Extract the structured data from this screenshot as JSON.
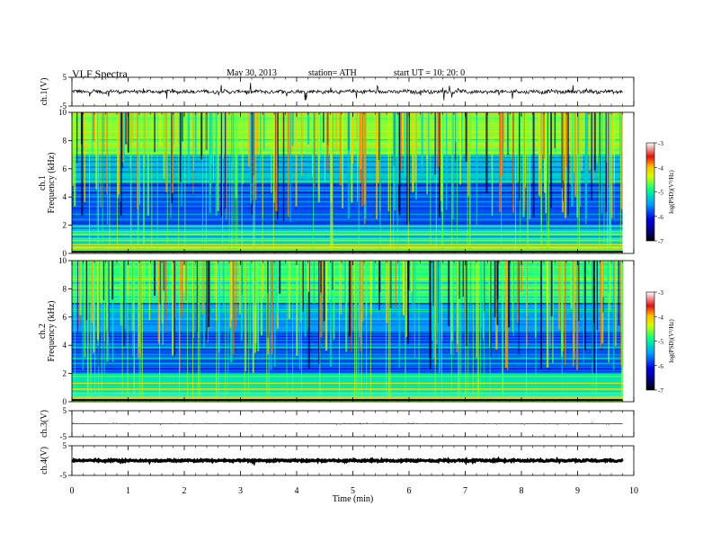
{
  "header": {
    "title": "VLF Spectra",
    "date": "May 30, 2013",
    "station": "station= ATH",
    "start_time": "start UT = 10: 20: 0"
  },
  "chart_data": [
    {
      "id": "ch1_waveform",
      "type": "line",
      "ylabel": "ch.1(V)",
      "ylim": [
        -5,
        5
      ],
      "y_ticks": [
        "5",
        "-5"
      ],
      "xlim": [
        0,
        10
      ],
      "description_of_trace": "noisy signal around ~0 V with spikes",
      "data_end_min": 9.8,
      "baseline": 0,
      "amplitude": 0.6,
      "spike_amplitude": 3.0
    },
    {
      "id": "ch1_spectrogram",
      "type": "heatmap",
      "ylabel": "ch.1 Frequency (kHz)",
      "ylim": [
        0,
        10
      ],
      "y_ticks": [
        "0",
        "2",
        "4",
        "6",
        "8",
        "10"
      ],
      "xlim": [
        0,
        10
      ],
      "data_end_min": 9.8,
      "colorbar": {
        "label": "log(PSD)(V²/Hz)",
        "range": [
          -7,
          -3
        ],
        "ticks": [
          "-3",
          "-4",
          "-5",
          "-6",
          "-7"
        ],
        "colors": [
          "#000000",
          "#0000cc",
          "#0099ff",
          "#00ff88",
          "#ffff00",
          "#ff6600",
          "#cc0000",
          "#ffffff"
        ]
      },
      "levels": [
        {
          "f_range": [
            0,
            0.5
          ],
          "log_psd": -4.5
        },
        {
          "f_range": [
            0.5,
            2
          ],
          "log_psd": -5.2
        },
        {
          "f_range": [
            2,
            5
          ],
          "log_psd": -5.8
        },
        {
          "f_range": [
            5,
            7
          ],
          "log_psd": -5.3
        },
        {
          "f_range": [
            7,
            10
          ],
          "log_psd": -4.6
        }
      ]
    },
    {
      "id": "ch2_spectrogram",
      "type": "heatmap",
      "ylabel": "ch.2 Frequency (kHz)",
      "ylim": [
        0,
        10
      ],
      "y_ticks": [
        "0",
        "2",
        "4",
        "6",
        "8",
        "10"
      ],
      "xlim": [
        0,
        10
      ],
      "data_end_min": 9.8,
      "colorbar": {
        "label": "log(PSD)(V²/Hz)",
        "range": [
          -7,
          -3
        ],
        "ticks": [
          "-3",
          "-4",
          "-5",
          "-6",
          "-7"
        ]
      },
      "levels": [
        {
          "f_range": [
            0,
            0.5
          ],
          "log_psd": -4.5
        },
        {
          "f_range": [
            0.5,
            2
          ],
          "log_psd": -5.1
        },
        {
          "f_range": [
            2,
            5
          ],
          "log_psd": -5.7
        },
        {
          "f_range": [
            5,
            7
          ],
          "log_psd": -5.5
        },
        {
          "f_range": [
            7,
            10
          ],
          "log_psd": -4.8
        }
      ]
    },
    {
      "id": "ch3_waveform",
      "type": "line",
      "ylabel": "ch.3(V)",
      "ylim": [
        -5,
        5
      ],
      "y_ticks": [
        "5",
        "-5"
      ],
      "xlim": [
        0,
        10
      ],
      "data_end_min": 9.8,
      "baseline": 0,
      "amplitude": 0.05,
      "spike_amplitude": 0.3
    },
    {
      "id": "ch4_waveform",
      "type": "line",
      "ylabel": "ch.4(V)",
      "ylim": [
        -5,
        5
      ],
      "y_ticks": [
        "5",
        "-5"
      ],
      "xlim": [
        0,
        10
      ],
      "data_end_min": 9.8,
      "baseline": 0,
      "amplitude": 0.25,
      "spike_amplitude": 0.3
    }
  ],
  "xaxis": {
    "label": "Time (min)",
    "ticks": [
      "0",
      "1",
      "2",
      "3",
      "4",
      "5",
      "6",
      "7",
      "8",
      "9",
      "10"
    ],
    "range": [
      0,
      10
    ]
  }
}
